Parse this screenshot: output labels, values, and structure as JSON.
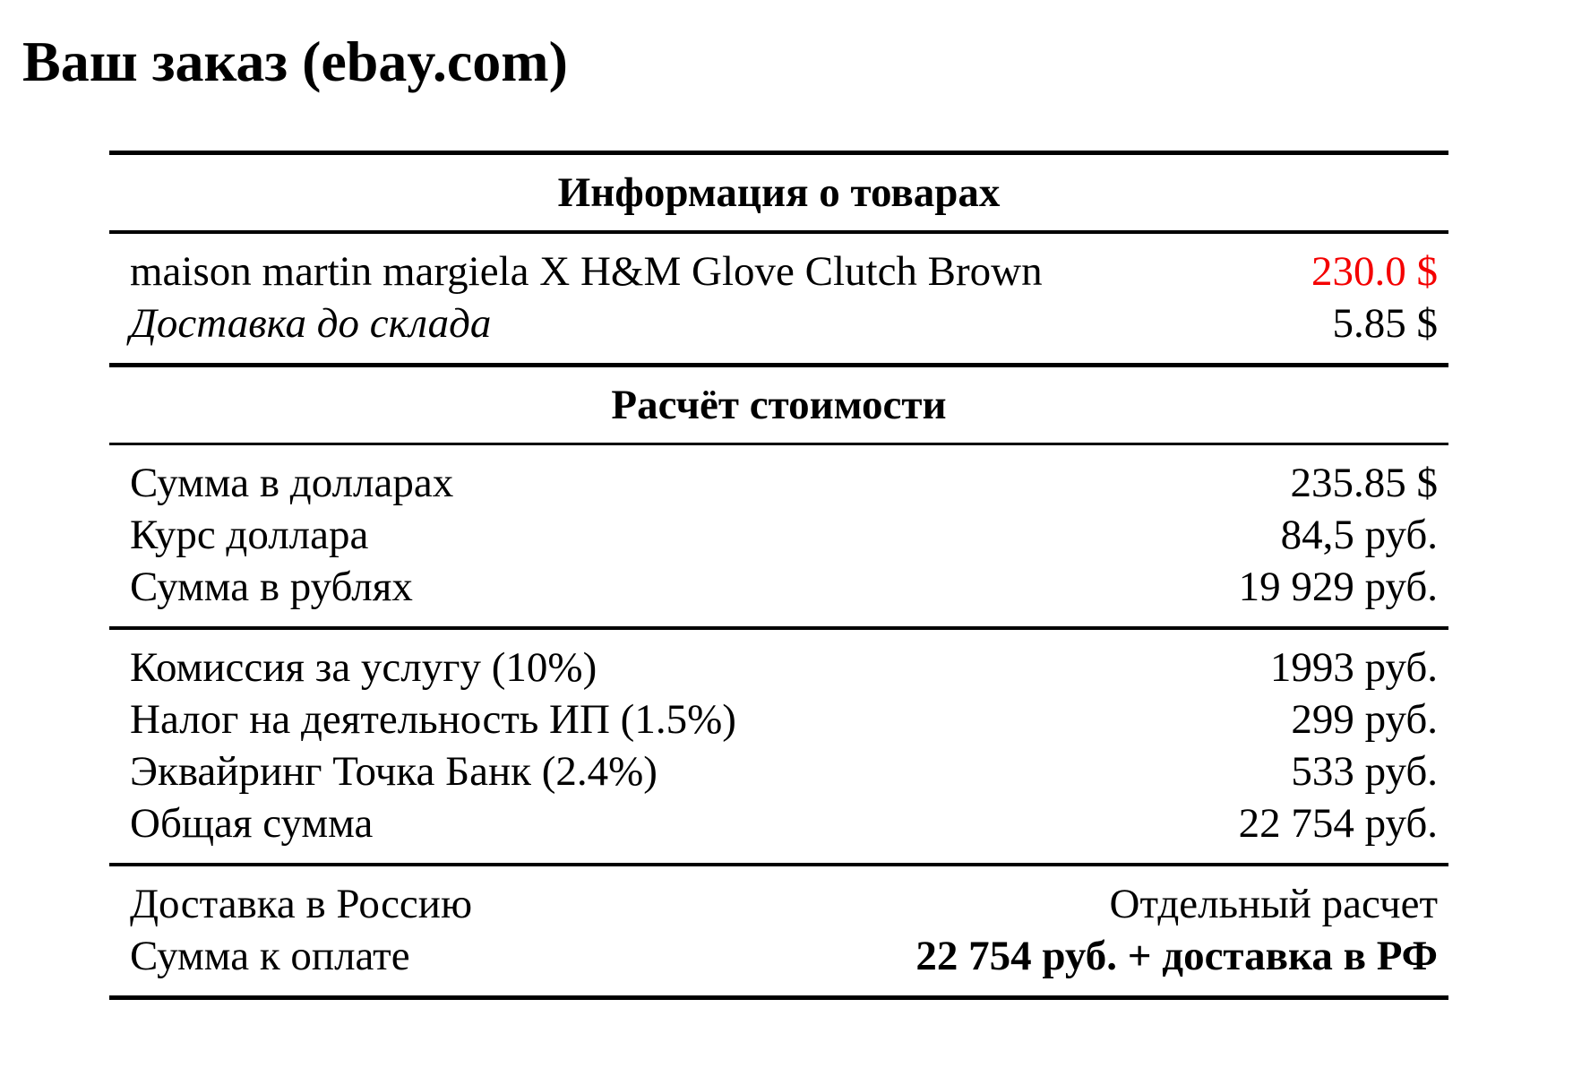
{
  "page_title": "Ваш заказ (ebay.com)",
  "colors": {
    "background": "#ffffff",
    "text": "#000000",
    "rule": "#000000",
    "price_highlight": "#f40000"
  },
  "table": {
    "sections": {
      "items": {
        "header": "Информация о товарах",
        "rows": [
          {
            "label": "maison martin margiela X H&M Glove Clutch Brown",
            "value": "230.0 $"
          },
          {
            "label": "Доставка до склада",
            "value": "5.85 $"
          }
        ]
      },
      "calc": {
        "header": "Расчёт стоимости",
        "totals": [
          {
            "label": "Сумма в долларах",
            "value": "235.85 $"
          },
          {
            "label": "Курс доллара",
            "value": "84,5 руб."
          },
          {
            "label": "Сумма в рублях",
            "value": "19 929 руб."
          }
        ],
        "fees": [
          {
            "label": "Комиссия за услугу (10%)",
            "value": "1993 руб."
          },
          {
            "label": "Налог на деятельность ИП (1.5%)",
            "value": "299 руб."
          },
          {
            "label": "Эквайринг Точка Банк (2.4%)",
            "value": "533 руб."
          },
          {
            "label": "Общая сумма",
            "value": "22 754 руб."
          }
        ],
        "final": [
          {
            "label": "Доставка в Россию",
            "value": "Отдельный расчет"
          },
          {
            "label": "Сумма к оплате",
            "value": "22 754 руб. + доставка в РФ"
          }
        ]
      }
    }
  }
}
